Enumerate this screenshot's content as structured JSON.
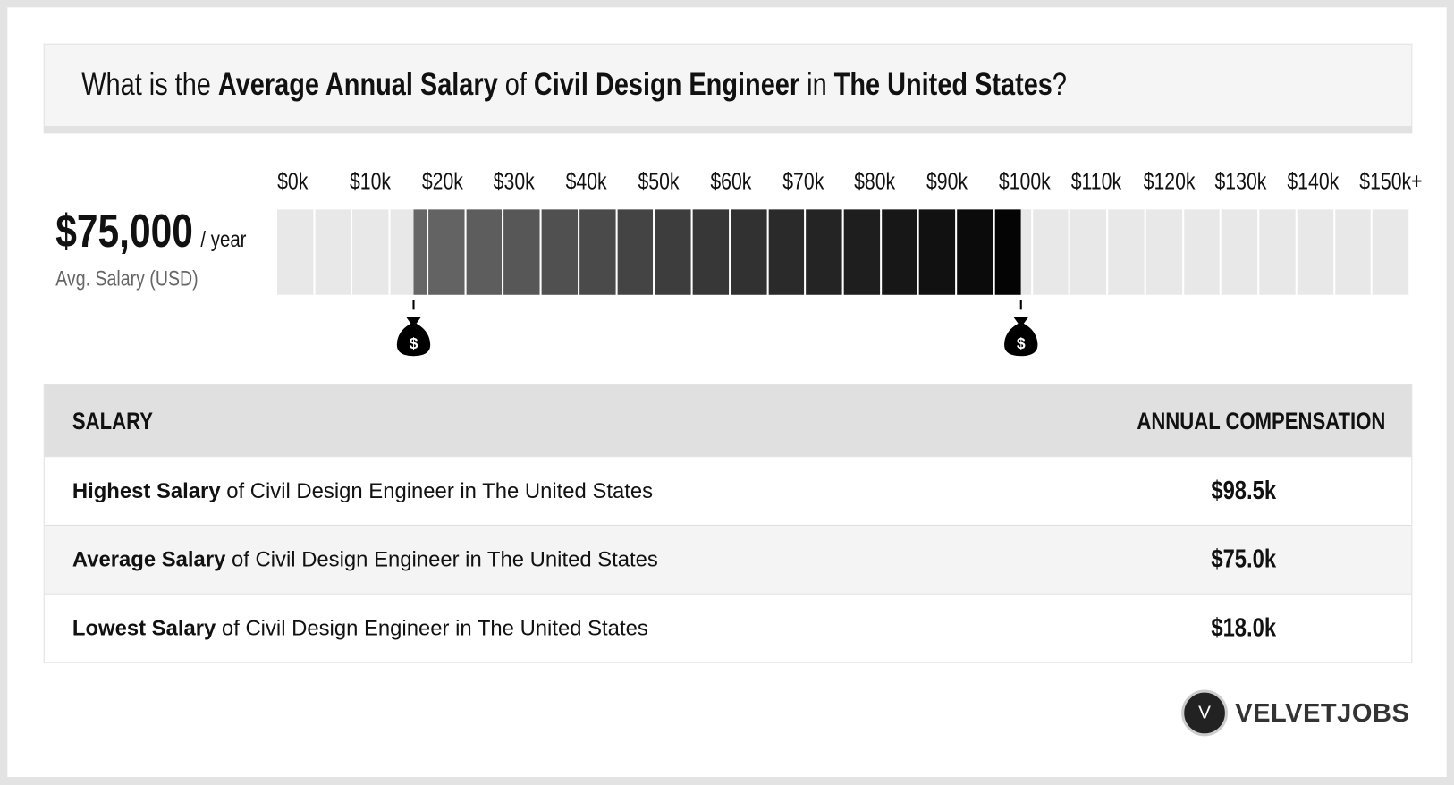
{
  "title": {
    "p1": "What is the ",
    "b1": "Average Annual Salary",
    "p2": " of ",
    "b2": "Civil Design Engineer",
    "p3": " in ",
    "b3": "The United States",
    "p4": "?"
  },
  "summary": {
    "value": "$75,000",
    "unit": "/ year",
    "label": "Avg. Salary (USD)"
  },
  "chart_data": {
    "type": "bar",
    "tick_labels": [
      "$0k",
      "$10k",
      "$20k",
      "$30k",
      "$40k",
      "$50k",
      "$60k",
      "$70k",
      "$80k",
      "$90k",
      "$100k",
      "$110k",
      "$120k",
      "$130k",
      "$140k",
      "$150k+"
    ],
    "xlim": [
      0,
      150000
    ],
    "segment_width": 5000,
    "range_low": 18000,
    "range_high": 98500,
    "average": 75000,
    "markers": [
      {
        "value": 18000,
        "icon": "money-bag-icon"
      },
      {
        "value": 98500,
        "icon": "money-bag-icon"
      }
    ],
    "colors": {
      "empty": "#e8e8e8",
      "fill_start": "#666666",
      "fill_end": "#000000"
    }
  },
  "table": {
    "headers": [
      "SALARY",
      "ANNUAL COMPENSATION"
    ],
    "rows": [
      {
        "bold": "Highest Salary",
        "rest": " of Civil Design Engineer in The United States",
        "value": "$98.5k"
      },
      {
        "bold": "Average Salary",
        "rest": " of Civil Design Engineer in The United States",
        "value": "$75.0k"
      },
      {
        "bold": "Lowest Salary",
        "rest": " of Civil Design Engineer in The United States",
        "value": "$18.0k"
      }
    ]
  },
  "logo": {
    "mark": "V",
    "text": "VELVETJOBS"
  }
}
